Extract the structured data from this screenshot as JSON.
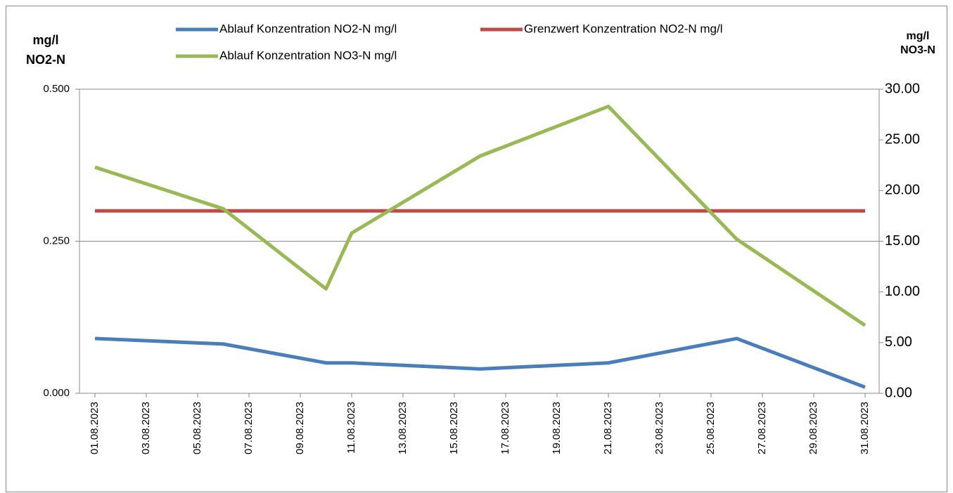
{
  "chart_data": {
    "type": "line",
    "x": [
      "01.08.2023",
      "06.08.2023",
      "10.08.2023",
      "11.08.2023",
      "16.08.2023",
      "21.08.2023",
      "26.08.2023",
      "31.08.2023"
    ],
    "xticks": [
      "01.08.2023",
      "03.08.2023",
      "05.08.2023",
      "07.08.2023",
      "09.08.2023",
      "11.08.2023",
      "13.08.2023",
      "15.08.2023",
      "17.08.2023",
      "19.08.2023",
      "21.08.2023",
      "23.08.2023",
      "25.08.2023",
      "27.08.2023",
      "29.08.2023",
      "31.08.2023"
    ],
    "y_label": [
      "mg/l",
      "NO2-N"
    ],
    "y2_label": [
      "mg/l",
      "NO3-N"
    ],
    "ylim": [
      0,
      0.5
    ],
    "yticks": [
      {
        "value": 0,
        "label": "0.000"
      },
      {
        "value": 0.25,
        "label": "0.250"
      },
      {
        "value": 0.5,
        "label": "0.500"
      }
    ],
    "y2lim": [
      0,
      30
    ],
    "y2ticks": [
      {
        "value": 0,
        "label": "0.00"
      },
      {
        "value": 5,
        "label": "5.00"
      },
      {
        "value": 10,
        "label": "10.00"
      },
      {
        "value": 15,
        "label": "15.00"
      },
      {
        "value": 20,
        "label": "20.00"
      },
      {
        "value": 25,
        "label": "25.00"
      },
      {
        "value": 30,
        "label": "30.00"
      }
    ],
    "grid": true,
    "legend": "top",
    "series": [
      {
        "name": "Ablauf Konzentration NO2-N mg/l",
        "color": "#4a7ebb",
        "values": [
          0.09,
          0.081,
          0.05,
          0.05,
          0.04,
          0.05,
          0.09,
          0.01
        ]
      },
      {
        "name": "Grenzwert Konzentration NO2-N mg/l",
        "color": "#be4b48",
        "values": [
          0.3,
          0.3,
          0.3,
          0.3,
          0.3,
          0.3,
          0.3,
          0.3
        ]
      },
      {
        "name": "Ablauf Konzentration NO3-N mg/l",
        "color": "#98b954",
        "axis": "y2",
        "values": [
          22.3,
          18.2,
          10.3,
          15.8,
          23.4,
          28.3,
          15.2,
          6.7
        ]
      }
    ]
  }
}
